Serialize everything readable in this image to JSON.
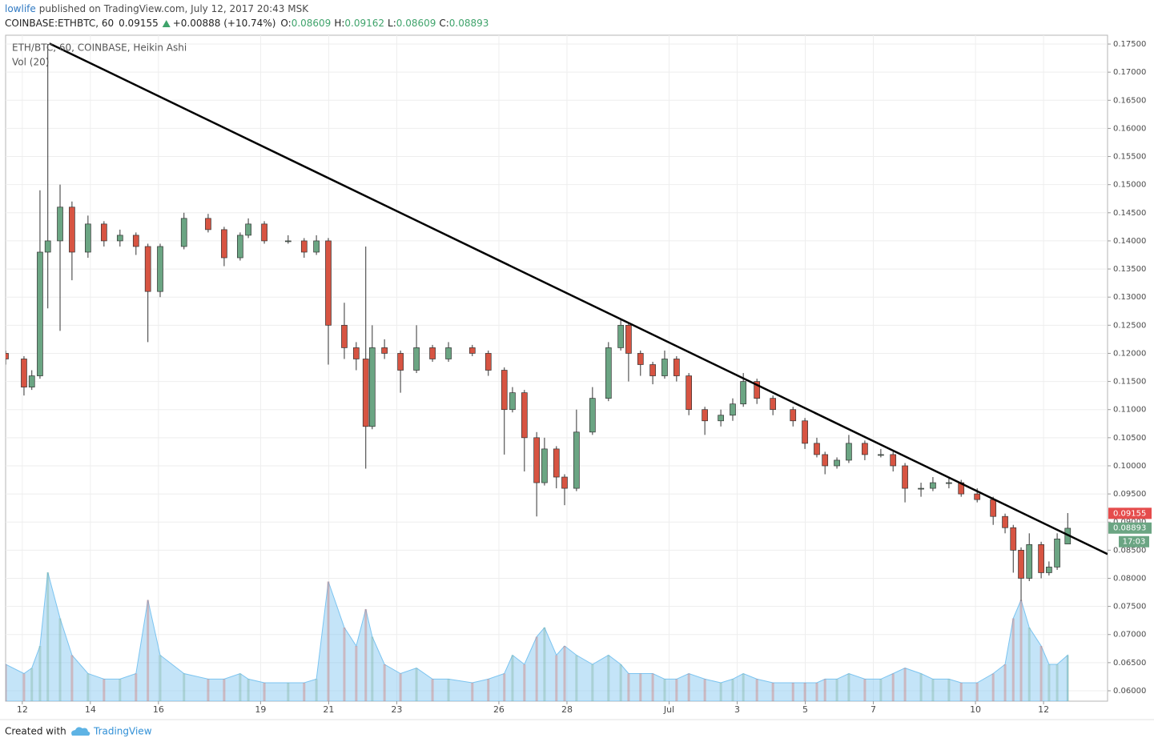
{
  "header": {
    "author": "lowlife",
    "byline": "published on TradingView.com, July 12, 2017 20:43 MSK",
    "symbol": "COINBASE:ETHBTC, 60",
    "last": "0.09155",
    "change": "+0.00888 (+10.74%)",
    "ohlc": [
      {
        "label": "O:",
        "value": "0.08609"
      },
      {
        "label": "H:",
        "value": "0.09162"
      },
      {
        "label": "L:",
        "value": "0.08609"
      },
      {
        "label": "C:",
        "value": "0.08893"
      }
    ]
  },
  "footer": {
    "created": "Created with",
    "brand": "TradingView"
  },
  "chart_data": {
    "type": "candlestick",
    "legend_title": "ETH/BTC, 60, COINBASE, Heikin Ashi",
    "volume_label": "Vol (20)",
    "up_color": "#6ba583",
    "down_color": "#d75442",
    "volume_color": "#7cc4f0",
    "grid": true,
    "xlim": [
      -0.49,
      31.88
    ],
    "ylim": [
      0.05815,
      0.17657
    ],
    "volume_lim": [
      0,
      100
    ],
    "xticks": [
      {
        "value": 0,
        "label": "12"
      },
      {
        "value": 2,
        "label": "14"
      },
      {
        "value": 4,
        "label": "16"
      },
      {
        "value": 7,
        "label": "19"
      },
      {
        "value": 9,
        "label": "21"
      },
      {
        "value": 11,
        "label": "23"
      },
      {
        "value": 14,
        "label": "26"
      },
      {
        "value": 16,
        "label": "28"
      },
      {
        "value": 19,
        "label": "Jul"
      },
      {
        "value": 21,
        "label": "3"
      },
      {
        "value": 23,
        "label": "5"
      },
      {
        "value": 25,
        "label": "7"
      },
      {
        "value": 28,
        "label": "10"
      },
      {
        "value": 30,
        "label": "12"
      }
    ],
    "yticks": [
      {
        "value": 0.06,
        "label": "0.06000"
      },
      {
        "value": 0.065,
        "label": "0.06500"
      },
      {
        "value": 0.07,
        "label": "0.07000"
      },
      {
        "value": 0.075,
        "label": "0.07500"
      },
      {
        "value": 0.08,
        "label": "0.08000"
      },
      {
        "value": 0.085,
        "label": "0.08500"
      },
      {
        "value": 0.09,
        "label": "0.09000"
      },
      {
        "value": 0.095,
        "label": "0.09500"
      },
      {
        "value": 0.1,
        "label": "0.10000"
      },
      {
        "value": 0.105,
        "label": "0.10500"
      },
      {
        "value": 0.11,
        "label": "0.11000"
      },
      {
        "value": 0.115,
        "label": "0.11500"
      },
      {
        "value": 0.12,
        "label": "0.12000"
      },
      {
        "value": 0.125,
        "label": "0.12500"
      },
      {
        "value": 0.13,
        "label": "0.13000"
      },
      {
        "value": 0.135,
        "label": "0.13500"
      },
      {
        "value": 0.14,
        "label": "0.14000"
      },
      {
        "value": 0.145,
        "label": "0.14500"
      },
      {
        "value": 0.15,
        "label": "0.15000"
      },
      {
        "value": 0.155,
        "label": "0.15500"
      },
      {
        "value": 0.16,
        "label": "0.16000"
      },
      {
        "value": 0.165,
        "label": "0.16500"
      },
      {
        "value": 0.17,
        "label": "0.17000"
      },
      {
        "value": 0.175,
        "label": "0.17500"
      }
    ],
    "x": [
      -0.49,
      0.05,
      0.28,
      0.52,
      0.75,
      1.11,
      1.46,
      1.93,
      2.4,
      2.87,
      3.34,
      3.69,
      4.05,
      4.75,
      5.46,
      5.93,
      6.4,
      6.64,
      7.11,
      7.81,
      8.28,
      8.64,
      8.99,
      9.46,
      9.81,
      10.09,
      10.28,
      10.64,
      11.11,
      11.58,
      12.05,
      12.52,
      13.22,
      13.69,
      14.16,
      14.4,
      14.75,
      15.11,
      15.34,
      15.69,
      15.93,
      16.28,
      16.75,
      17.22,
      17.58,
      17.81,
      18.16,
      18.52,
      18.87,
      19.22,
      19.58,
      20.05,
      20.52,
      20.87,
      21.18,
      21.58,
      22.05,
      22.64,
      22.99,
      23.34,
      23.58,
      23.93,
      24.28,
      24.75,
      25.22,
      25.58,
      25.93,
      26.4,
      26.75,
      27.22,
      27.58,
      28.05,
      28.52,
      28.87,
      29.11,
      29.34,
      29.58,
      29.93,
      30.16,
      30.4,
      30.71
    ],
    "open": [
      0.12,
      0.119,
      0.114,
      0.116,
      0.138,
      0.14,
      0.146,
      0.138,
      0.143,
      0.14,
      0.141,
      0.139,
      0.131,
      0.139,
      0.144,
      0.142,
      0.137,
      0.141,
      0.143,
      0.14,
      0.14,
      0.138,
      0.14,
      0.125,
      0.121,
      0.119,
      0.107,
      0.121,
      0.12,
      0.117,
      0.121,
      0.119,
      0.121,
      0.12,
      0.117,
      0.11,
      0.113,
      0.105,
      0.097,
      0.103,
      0.098,
      0.096,
      0.106,
      0.112,
      0.121,
      0.125,
      0.12,
      0.118,
      0.116,
      0.119,
      0.116,
      0.11,
      0.108,
      0.109,
      0.111,
      0.115,
      0.112,
      0.11,
      0.108,
      0.104,
      0.102,
      0.1,
      0.101,
      0.104,
      0.102,
      0.102,
      0.1,
      0.096,
      0.096,
      0.097,
      0.097,
      0.095,
      0.094,
      0.091,
      0.089,
      0.085,
      0.08,
      0.086,
      0.081,
      0.082,
      0.0861
    ],
    "high": [
      0.1205,
      0.1195,
      0.117,
      0.149,
      0.175,
      0.15,
      0.147,
      0.1445,
      0.1435,
      0.142,
      0.1415,
      0.1395,
      0.1395,
      0.145,
      0.1448,
      0.1425,
      0.1415,
      0.144,
      0.1435,
      0.141,
      0.1405,
      0.141,
      0.1405,
      0.129,
      0.122,
      0.139,
      0.125,
      0.1225,
      0.1205,
      0.125,
      0.1215,
      0.122,
      0.1215,
      0.1205,
      0.1175,
      0.114,
      0.1135,
      0.106,
      0.105,
      0.1035,
      0.0985,
      0.11,
      0.114,
      0.122,
      0.126,
      0.1255,
      0.1205,
      0.1185,
      0.1205,
      0.1195,
      0.1165,
      0.1105,
      0.11,
      0.112,
      0.1165,
      0.1155,
      0.1125,
      0.1105,
      0.1085,
      0.105,
      0.1025,
      0.1015,
      0.1055,
      0.1045,
      0.103,
      0.1025,
      0.1005,
      0.097,
      0.098,
      0.098,
      0.0975,
      0.096,
      0.0945,
      0.0915,
      0.0895,
      0.0855,
      0.088,
      0.0865,
      0.083,
      0.088,
      0.0916
    ],
    "low": [
      0.118,
      0.1125,
      0.1135,
      0.1155,
      0.128,
      0.124,
      0.133,
      0.137,
      0.139,
      0.139,
      0.1375,
      0.122,
      0.13,
      0.1385,
      0.1415,
      0.1355,
      0.1365,
      0.1405,
      0.1395,
      0.1395,
      0.137,
      0.1375,
      0.118,
      0.119,
      0.117,
      0.0995,
      0.1065,
      0.119,
      0.113,
      0.1165,
      0.1185,
      0.1185,
      0.1195,
      0.116,
      0.102,
      0.1095,
      0.099,
      0.091,
      0.0965,
      0.096,
      0.093,
      0.0955,
      0.1055,
      0.1115,
      0.1205,
      0.115,
      0.116,
      0.1145,
      0.1155,
      0.115,
      0.109,
      0.1055,
      0.107,
      0.108,
      0.1105,
      0.111,
      0.109,
      0.107,
      0.103,
      0.1015,
      0.0985,
      0.0995,
      0.1005,
      0.101,
      0.1015,
      0.099,
      0.0935,
      0.0945,
      0.0955,
      0.096,
      0.0945,
      0.0935,
      0.0895,
      0.088,
      0.081,
      0.076,
      0.0795,
      0.08,
      0.0805,
      0.0815,
      0.0861
    ],
    "close": [
      0.119,
      0.114,
      0.116,
      0.138,
      0.14,
      0.146,
      0.138,
      0.143,
      0.14,
      0.141,
      0.139,
      0.131,
      0.139,
      0.144,
      0.142,
      0.137,
      0.141,
      0.143,
      0.14,
      0.14,
      0.138,
      0.14,
      0.125,
      0.121,
      0.119,
      0.107,
      0.121,
      0.12,
      0.117,
      0.121,
      0.119,
      0.121,
      0.12,
      0.117,
      0.11,
      0.113,
      0.105,
      0.097,
      0.103,
      0.098,
      0.096,
      0.106,
      0.112,
      0.121,
      0.125,
      0.12,
      0.118,
      0.116,
      0.119,
      0.116,
      0.11,
      0.108,
      0.109,
      0.111,
      0.115,
      0.112,
      0.11,
      0.108,
      0.104,
      0.102,
      0.1,
      0.101,
      0.104,
      0.102,
      0.102,
      0.1,
      0.096,
      0.096,
      0.097,
      0.097,
      0.095,
      0.094,
      0.091,
      0.089,
      0.085,
      0.08,
      0.086,
      0.081,
      0.082,
      0.087,
      0.0889
    ],
    "volume": [
      20,
      15,
      18,
      30,
      70,
      45,
      25,
      15,
      12,
      12,
      15,
      55,
      25,
      15,
      12,
      12,
      15,
      12,
      10,
      10,
      10,
      12,
      65,
      40,
      30,
      50,
      35,
      20,
      15,
      18,
      12,
      12,
      10,
      12,
      15,
      25,
      20,
      35,
      40,
      25,
      30,
      25,
      20,
      25,
      20,
      15,
      15,
      15,
      12,
      12,
      15,
      12,
      10,
      12,
      15,
      12,
      10,
      10,
      10,
      10,
      12,
      12,
      15,
      12,
      12,
      15,
      18,
      15,
      12,
      12,
      10,
      10,
      15,
      20,
      45,
      55,
      40,
      30,
      20,
      20,
      25
    ],
    "trendline": {
      "x": [
        0.8,
        31.88
      ],
      "y": [
        0.1751,
        0.0843
      ]
    },
    "price_tags": [
      {
        "value": 0.09155,
        "color": "#e54c4c"
      },
      {
        "value": 0.08893,
        "color": "#6ba583"
      }
    ],
    "countdown": "17:03"
  }
}
